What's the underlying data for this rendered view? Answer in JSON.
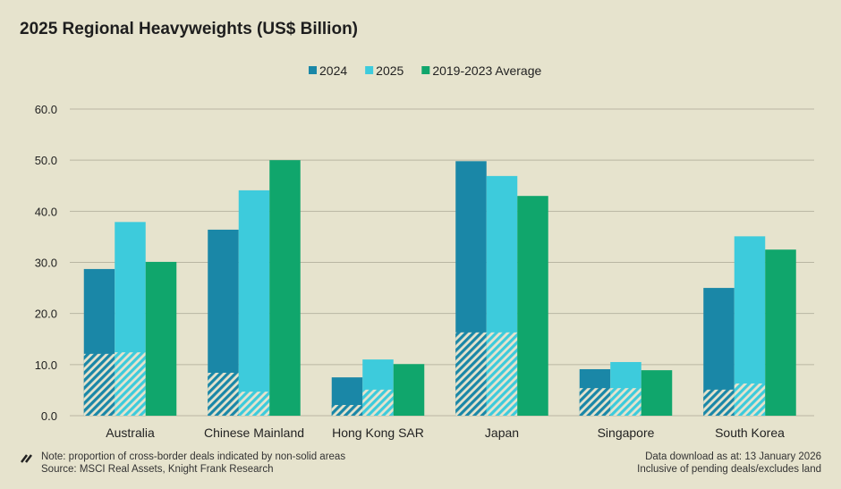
{
  "chart_data": {
    "type": "bar",
    "title": "2025 Regional Heavyweights (US$ Billion)",
    "xlabel": "",
    "ylabel": "",
    "ylim": [
      0,
      60
    ],
    "yticks": [
      "0.0",
      "10.0",
      "20.0",
      "30.0",
      "40.0",
      "50.0",
      "60.0"
    ],
    "grid": true,
    "legend_position": "top-center",
    "categories": [
      "Australia",
      "Chinese Mainland",
      "Hong Kong SAR",
      "Japan",
      "Singapore",
      "South Korea"
    ],
    "series": [
      {
        "name": "2024",
        "color": "#1a87a7",
        "values": [
          28.7,
          36.4,
          7.5,
          49.8,
          9.1,
          25.0
        ],
        "cross_border": [
          12.1,
          8.4,
          2.1,
          16.3,
          5.4,
          5.1
        ]
      },
      {
        "name": "2025",
        "color": "#3dcbdc",
        "values": [
          37.9,
          44.1,
          11.0,
          46.9,
          10.5,
          35.1
        ],
        "cross_border": [
          12.4,
          4.7,
          5.1,
          16.3,
          5.4,
          6.3
        ]
      },
      {
        "name": "2019-2023 Average",
        "color": "#10a66c",
        "values": [
          30.1,
          50.0,
          10.1,
          43.0,
          8.9,
          32.5
        ],
        "cross_border": null
      }
    ]
  },
  "footer": {
    "note": "Note: proportion of cross-border deals indicated by non-solid areas",
    "source": "Source: MSCI Real Assets, Knight Frank Research",
    "download": "Data download as at: 13 January 2026",
    "inclusive": "Inclusive of pending deals/excludes land"
  }
}
